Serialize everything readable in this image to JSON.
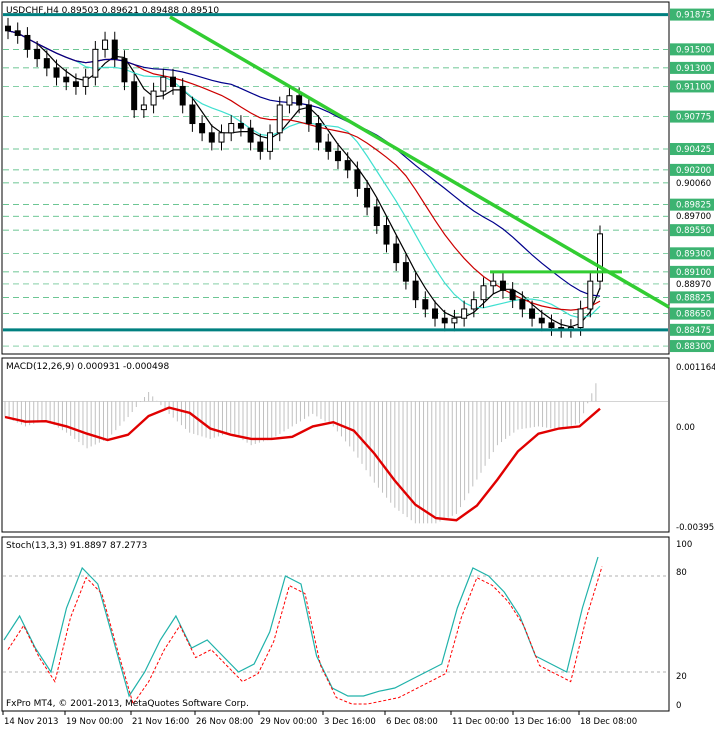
{
  "main": {
    "header": "USDCHF,H4  0.89503 0.89621 0.89488 0.89510",
    "ylim": [
      0.88225,
      0.92
    ],
    "price_labels": [
      {
        "text": "0.91875",
        "boxed": true
      },
      {
        "text": "0.91500",
        "boxed": true
      },
      {
        "text": "0.91300",
        "boxed": true
      },
      {
        "text": "0.91100",
        "boxed": true
      },
      {
        "text": "0.90775",
        "boxed": true
      },
      {
        "text": "0.90425",
        "boxed": true
      },
      {
        "text": "0.90200",
        "boxed": true
      },
      {
        "text": "0.90060",
        "boxed": false
      },
      {
        "text": "0.89825",
        "boxed": true
      },
      {
        "text": "0.89700",
        "boxed": false
      },
      {
        "text": "0.89550",
        "boxed": true
      },
      {
        "text": "0.89300",
        "boxed": true
      },
      {
        "text": "0.89100",
        "boxed": true
      },
      {
        "text": "0.88970",
        "boxed": false
      },
      {
        "text": "0.88825",
        "boxed": true
      },
      {
        "text": "0.88650",
        "boxed": true
      },
      {
        "text": "0.88475",
        "boxed": true
      },
      {
        "text": "0.88300",
        "boxed": true
      }
    ]
  },
  "macd": {
    "header": "MACD(12,26,9) 0.000931 -0.000498",
    "labels": [
      "0.001164",
      "0.00",
      "-0.003953"
    ]
  },
  "stoch": {
    "header": "Stoch(13,3,3) 91.8897 87.2773",
    "labels": [
      "100",
      "80",
      "20",
      "0"
    ]
  },
  "copyright": "FxPro MT4, © 2001-2013, MetaQuotes Software Corp.",
  "time_labels": [
    "14 Nov 2013",
    "19 Nov 00:00",
    "21 Nov 16:00",
    "26 Nov 08:00",
    "29 Nov 00:00",
    "3 Dec 16:00",
    "6 Dec 08:00",
    "11 Dec 00:00",
    "13 Dec 16:00",
    "18 Dec 08:00"
  ],
  "colors": {
    "candle": "#000000",
    "support_resistance": "#008080",
    "trendline": "#32cd32",
    "ma_black": "#000000",
    "ma_teal": "#40e0d0",
    "ma_red": "#cc0000",
    "ma_blue": "#00008b",
    "macd_signal": "#e00000",
    "stoch_main": "#20b2aa",
    "stoch_signal": "#ff0000"
  },
  "chart_data": {
    "type": "line",
    "title": "USDCHF,H4",
    "series": [
      {
        "name": "USDCHF,H4",
        "values": [
          0.917,
          0.9165,
          0.915,
          0.914,
          0.913,
          0.912,
          0.9115,
          0.911,
          0.912,
          0.915,
          0.916,
          0.914,
          0.9115,
          0.9085,
          0.909,
          0.9105,
          0.912,
          0.911,
          0.909,
          0.907,
          0.906,
          0.905,
          0.906,
          0.907,
          0.9065,
          0.905,
          0.904,
          0.906,
          0.909,
          0.91,
          0.909,
          0.907,
          0.905,
          0.904,
          0.903,
          0.902,
          0.9,
          0.898,
          0.896,
          0.894,
          0.892,
          0.89,
          0.888,
          0.887,
          0.886,
          0.8855,
          0.886,
          0.887,
          0.888,
          0.8895,
          0.89,
          0.889,
          0.888,
          0.887,
          0.886,
          0.8855,
          0.885,
          0.8848,
          0.885,
          0.887,
          0.89,
          0.8951
        ]
      },
      {
        "name": "MACD",
        "values": [
          -0.0005,
          -0.0008,
          -0.0006,
          -0.001,
          -0.0015,
          -0.0012,
          -0.0005,
          0.0003,
          -0.0004,
          -0.001,
          -0.0012,
          -0.001,
          -0.0014,
          -0.0012,
          -0.0008,
          -0.0004,
          -0.0008,
          -0.0016,
          -0.0026,
          -0.0034,
          -0.0039,
          -0.0039,
          -0.0036,
          -0.0025,
          -0.0014,
          -0.0009,
          -0.0008,
          -0.0009,
          -0.0007,
          0.0009
        ]
      },
      {
        "name": "Stoch",
        "values": [
          40,
          55,
          35,
          20,
          60,
          85,
          75,
          40,
          5,
          20,
          40,
          55,
          35,
          40,
          30,
          20,
          25,
          45,
          80,
          75,
          30,
          10,
          5,
          5,
          8,
          10,
          15,
          20,
          25,
          60,
          85,
          80,
          70,
          55,
          30,
          25,
          20,
          60,
          91.9
        ]
      }
    ]
  }
}
